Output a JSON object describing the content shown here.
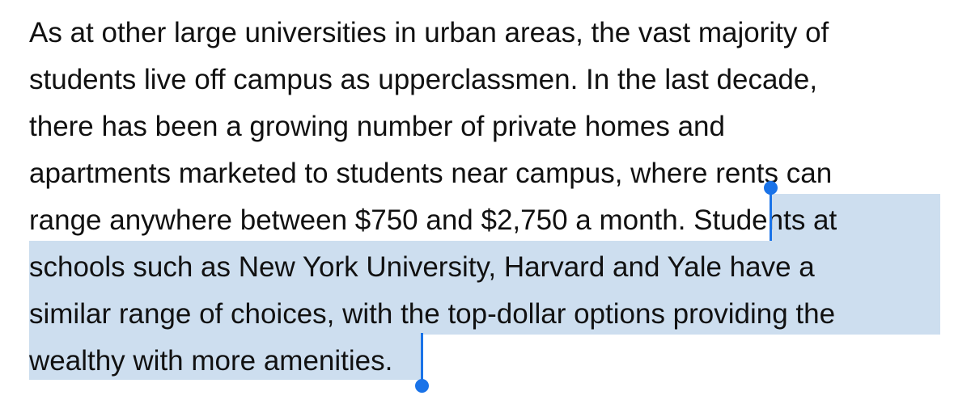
{
  "document": {
    "lines": [
      "As at other large universities in urban areas, the vast majority of",
      "students live off campus as upperclassmen. In the last decade,",
      "there has been a growing number of private homes and",
      "apartments marketed to students near campus, where rents can"
    ],
    "line5_unselected": "range anywhere between $750 and $2,750 a month. ",
    "line5_selected": "Students at",
    "selected_lines": [
      "schools such as New York University, Harvard and Yale have a",
      "similar range of choices, with the top-dollar options providing the"
    ],
    "line9_selected": "wealthy with more amenities",
    "line9_unselected": "."
  },
  "colors": {
    "selection_highlight": "#cddeef",
    "selection_handle": "#1a73e8",
    "text": "#111111",
    "background": "#ffffff"
  }
}
